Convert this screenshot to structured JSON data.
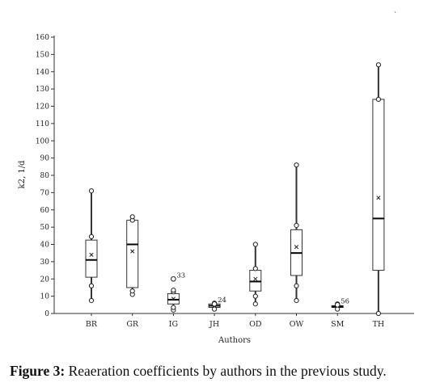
{
  "chart_data": {
    "type": "box",
    "title": "",
    "xlabel": "Authors",
    "ylabel": "k2, 1/d",
    "ylim": [
      0,
      165
    ],
    "yticks": [
      0,
      10,
      20,
      30,
      40,
      50,
      60,
      70,
      80,
      90,
      100,
      110,
      120,
      130,
      140,
      150,
      160
    ],
    "categories": [
      "BR",
      "GR",
      "IG",
      "JH",
      "OD",
      "OW",
      "SM",
      "TH"
    ],
    "boxes": [
      {
        "category": "BR",
        "whisker_low": 7.5,
        "q1": 21,
        "median": 31,
        "q3": 42.5,
        "whisker_high": 71,
        "mean": 34,
        "inner_points": [
          7.5,
          16,
          44.5,
          71
        ],
        "outliers": []
      },
      {
        "category": "GR",
        "whisker_low": 11,
        "q1": 15,
        "median": 40,
        "q3": 54,
        "whisker_high": 56,
        "mean": 36,
        "inner_points": [
          11,
          13,
          54,
          56
        ],
        "outliers": []
      },
      {
        "category": "IG",
        "whisker_low": 2,
        "q1": 5.5,
        "median": 8,
        "q3": 11.5,
        "whisker_high": 13.5,
        "mean": 8.5,
        "inner_points": [
          2,
          3.5,
          12.5,
          13.5
        ],
        "outliers": [
          {
            "value": 20,
            "label": "33"
          }
        ]
      },
      {
        "category": "JH",
        "whisker_low": 2.5,
        "q1": 3.5,
        "median": 4.5,
        "q3": 5.5,
        "whisker_high": 6,
        "mean": 4.5,
        "inner_points": [
          2.5,
          6
        ],
        "outliers": [
          {
            "value": 5.5,
            "label": "24"
          }
        ]
      },
      {
        "category": "OD",
        "whisker_low": 5.5,
        "q1": 13,
        "median": 18.5,
        "q3": 25,
        "whisker_high": 40,
        "mean": 20,
        "inner_points": [
          5.5,
          10,
          26,
          40
        ],
        "outliers": []
      },
      {
        "category": "OW",
        "whisker_low": 7.5,
        "q1": 22,
        "median": 35,
        "q3": 48.5,
        "whisker_high": 86,
        "mean": 38.5,
        "inner_points": [
          7.5,
          16,
          51,
          86
        ],
        "outliers": []
      },
      {
        "category": "SM",
        "whisker_low": 2.5,
        "q1": 3.5,
        "median": 4,
        "q3": 4.5,
        "whisker_high": 5.5,
        "mean": 4,
        "inner_points": [
          2.5,
          5.5
        ],
        "outliers": [
          {
            "value": 5,
            "label": "56"
          }
        ]
      },
      {
        "category": "TH",
        "whisker_low": 0,
        "q1": 25,
        "median": 55,
        "q3": 124,
        "whisker_high": 144,
        "mean": 67,
        "inner_points": [
          0,
          124,
          144
        ],
        "outliers": []
      }
    ],
    "grid": false,
    "colors": {
      "box_fill": "#ffffff",
      "line": "#333333",
      "median": "#000000"
    }
  },
  "caption": {
    "label": "Figure 3:",
    "text": " Reaeration coefficients by authors in the previous study."
  },
  "corner_mark": "ˏ"
}
